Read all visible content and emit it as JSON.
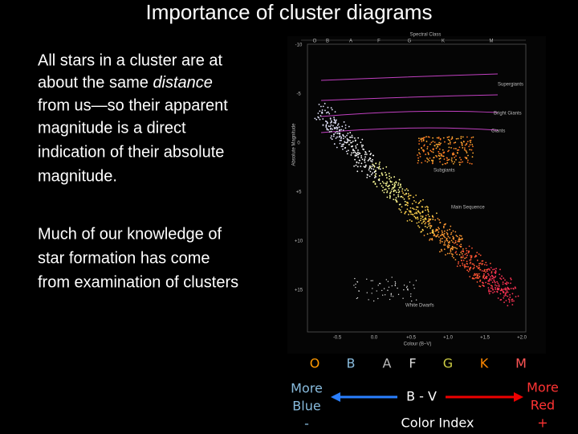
{
  "title": "Importance of cluster diagrams",
  "paragraph_1": {
    "lines": [
      "All stars in a cluster are at",
      [
        "about the same ",
        "distance"
      ],
      "from us—so their apparent",
      "magnitude is a direct",
      "indication of their absolute",
      "magnitude."
    ]
  },
  "paragraph_2": {
    "lines": [
      "Much of our knowledge of",
      "star formation has come",
      "from examination of clusters"
    ]
  },
  "hr_diagram": {
    "top_label": "Spectral Class",
    "spectral_classes": [
      "O",
      "B",
      "A",
      "F",
      "G",
      "K",
      "M"
    ],
    "y_label": "Absolute Magnitude",
    "y_ticks": [
      "-10",
      "-5",
      "0",
      "+5",
      "+10",
      "+15"
    ],
    "x_ticks": [
      "-0.5",
      "0.0",
      "+0.5",
      "+1.0",
      "+1.5",
      "+2.0"
    ],
    "x_label": "Colour (B–V)",
    "regions": [
      "Supergiants",
      "Bright Giants",
      "Giants",
      "Subgiants",
      "Main Sequence",
      "White Dwarfs"
    ]
  },
  "color_scale": {
    "classes": [
      "O",
      "B",
      "A",
      "F",
      "G",
      "K",
      "M"
    ],
    "left": [
      "More",
      "Blue",
      "-"
    ],
    "center": "B - V",
    "center_caption": "Color Index",
    "right": [
      "More",
      "Red",
      "+"
    ]
  }
}
